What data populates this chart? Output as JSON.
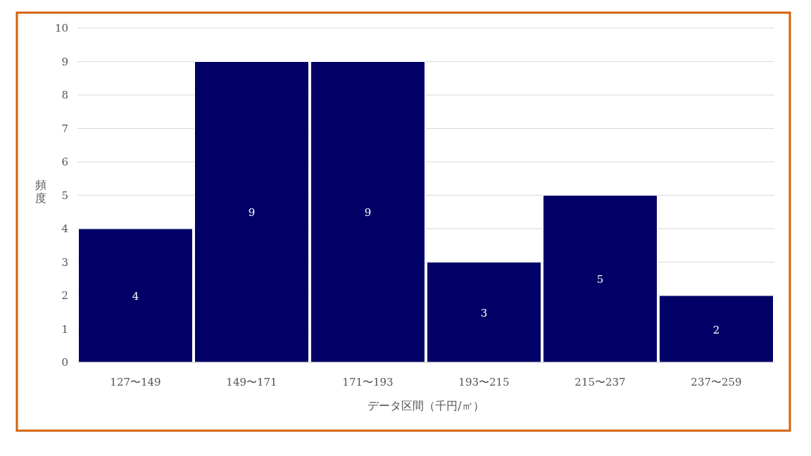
{
  "chart_data": {
    "type": "bar",
    "xlabel": "データ区間（千円/㎡）",
    "ylabel": "頻度",
    "categories": [
      "127〜149",
      "149〜171",
      "171〜193",
      "193〜215",
      "215〜237",
      "237〜259"
    ],
    "values": [
      4,
      9,
      9,
      3,
      5,
      2
    ],
    "color": "#000066",
    "ylim": [
      0,
      10
    ],
    "yticks": [
      0,
      1,
      2,
      3,
      4,
      5,
      6,
      7,
      8,
      9,
      10
    ],
    "grid": "y",
    "data_labels": true
  }
}
